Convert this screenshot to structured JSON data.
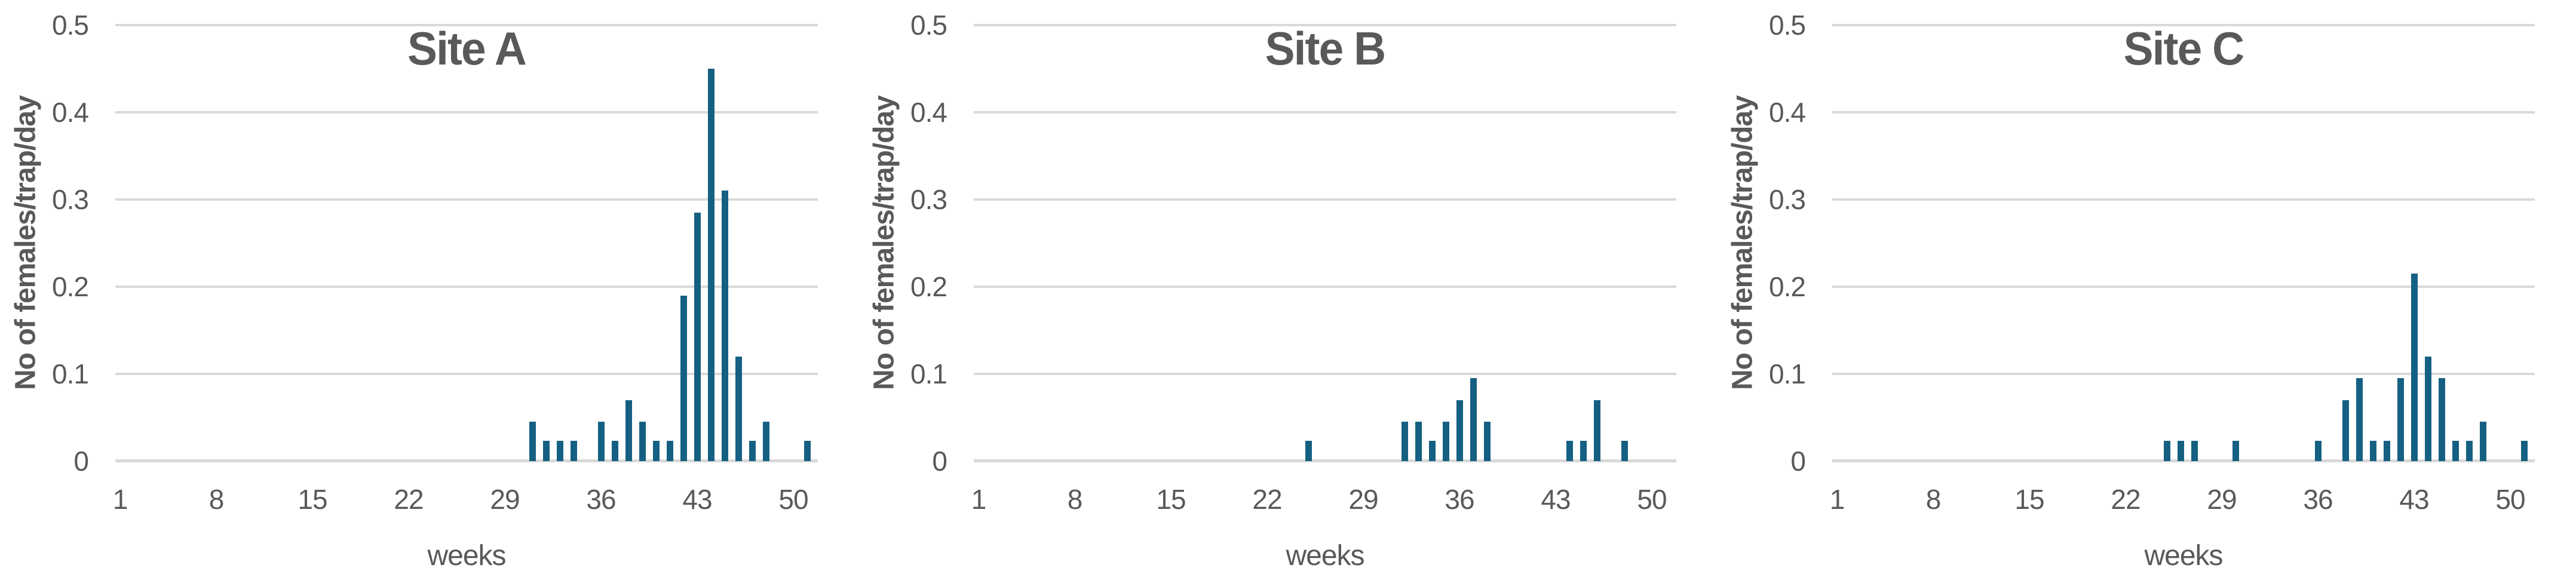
{
  "figure": {
    "background": "#FFFFFF",
    "bar_color": "#156082",
    "gridline_color": "#D9D9D9",
    "text_color": "#595959"
  },
  "chart_data": [
    {
      "type": "bar",
      "title": "Site A",
      "xlabel": "weeks",
      "ylabel": "No of females/trap/day",
      "ylim": [
        0,
        0.5
      ],
      "y_tick_labels": [
        "0.5",
        "0.4",
        "0.3",
        "0.2",
        "0.1",
        "0"
      ],
      "y_tick_values": [
        0.5,
        0.4,
        0.3,
        0.2,
        0.1,
        0
      ],
      "x_tick_labels": [
        "1",
        "8",
        "15",
        "22",
        "29",
        "36",
        "43",
        "50"
      ],
      "x_tick_values": [
        1,
        8,
        15,
        22,
        29,
        36,
        43,
        50
      ],
      "x_range_weeks": [
        1,
        52
      ],
      "grid": true,
      "legend": false,
      "weeks": [
        31,
        32,
        33,
        34,
        36,
        37,
        38,
        39,
        40,
        41,
        42,
        43,
        44,
        45,
        46,
        47,
        48,
        51
      ],
      "values": [
        0.045,
        0.023,
        0.023,
        0.023,
        0.045,
        0.023,
        0.07,
        0.045,
        0.023,
        0.023,
        0.19,
        0.285,
        0.45,
        0.31,
        0.12,
        0.023,
        0.045,
        0.023
      ]
    },
    {
      "type": "bar",
      "title": "Site B",
      "xlabel": "weeks",
      "ylabel": "No of females/trap/day",
      "ylim": [
        0,
        0.5
      ],
      "y_tick_labels": [
        "0.5",
        "0.4",
        "0.3",
        "0.2",
        "0.1",
        "0"
      ],
      "y_tick_values": [
        0.5,
        0.4,
        0.3,
        0.2,
        0.1,
        0
      ],
      "x_tick_labels": [
        "1",
        "8",
        "15",
        "22",
        "29",
        "36",
        "43",
        "50"
      ],
      "x_tick_values": [
        1,
        8,
        15,
        22,
        29,
        36,
        43,
        50
      ],
      "x_range_weeks": [
        1,
        52
      ],
      "grid": true,
      "legend": false,
      "weeks": [
        25,
        32,
        33,
        34,
        35,
        36,
        37,
        38,
        44,
        45,
        46,
        48
      ],
      "values": [
        0.023,
        0.045,
        0.045,
        0.023,
        0.045,
        0.07,
        0.095,
        0.045,
        0.023,
        0.023,
        0.07,
        0.023
      ]
    },
    {
      "type": "bar",
      "title": "Site C",
      "xlabel": "weeks",
      "ylabel": "No of females/trap/day",
      "ylim": [
        0,
        0.5
      ],
      "y_tick_labels": [
        "0.5",
        "0.4",
        "0.3",
        "0.2",
        "0.1",
        "0"
      ],
      "y_tick_values": [
        0.5,
        0.4,
        0.3,
        0.2,
        0.1,
        0
      ],
      "x_tick_labels": [
        "1",
        "8",
        "15",
        "22",
        "29",
        "36",
        "43",
        "50"
      ],
      "x_tick_values": [
        1,
        8,
        15,
        22,
        29,
        36,
        43,
        50
      ],
      "x_range_weeks": [
        1,
        52
      ],
      "grid": true,
      "legend": false,
      "weeks": [
        25,
        26,
        27,
        30,
        36,
        38,
        39,
        40,
        41,
        42,
        43,
        44,
        45,
        46,
        47,
        48,
        51
      ],
      "values": [
        0.023,
        0.023,
        0.023,
        0.023,
        0.023,
        0.07,
        0.095,
        0.023,
        0.023,
        0.095,
        0.215,
        0.12,
        0.095,
        0.023,
        0.023,
        0.045,
        0.023
      ]
    }
  ]
}
